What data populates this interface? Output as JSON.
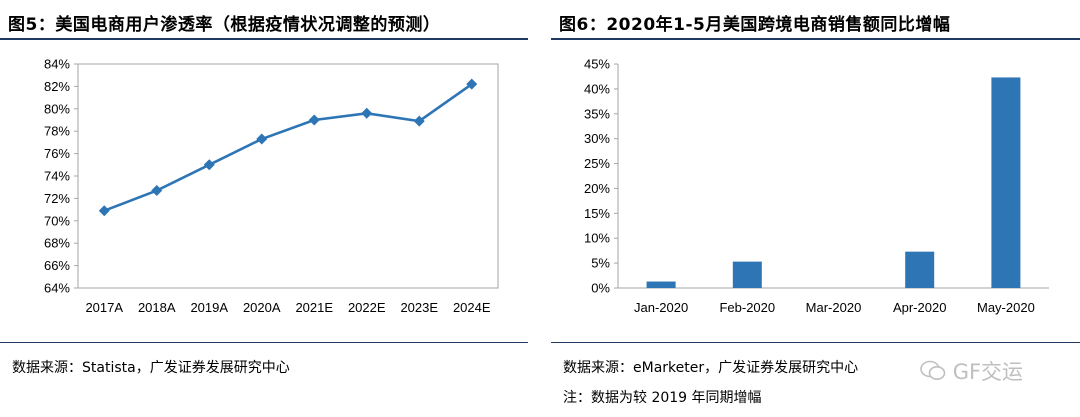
{
  "left": {
    "title": "图5：美国电商用户渗透率（根据疫情状况调整的预测）",
    "source": "数据来源：Statista，广发证券发展研究中心"
  },
  "right": {
    "title": "图6：2020年1-5月美国跨境电商销售额同比增幅",
    "source": "数据来源：eMarketer，广发证券发展研究中心",
    "note": "注：数据为较 2019 年同期增幅"
  },
  "watermark": "GF交运",
  "colors": {
    "series": "#2e75b6",
    "rule": "#1f3864",
    "axis": "#a6a6a6"
  },
  "chart_data": [
    {
      "type": "line",
      "categories": [
        "2017A",
        "2018A",
        "2019A",
        "2020A",
        "2021E",
        "2022E",
        "2023E",
        "2024E"
      ],
      "values": [
        70.9,
        72.7,
        75.0,
        77.3,
        79.0,
        79.6,
        78.9,
        82.2
      ],
      "y_ticks": [
        "64%",
        "66%",
        "68%",
        "70%",
        "72%",
        "74%",
        "76%",
        "78%",
        "80%",
        "82%",
        "84%"
      ],
      "ylim": [
        64,
        84
      ],
      "marker": "diamond",
      "grid": false
    },
    {
      "type": "bar",
      "categories": [
        "Jan-2020",
        "Feb-2020",
        "Mar-2020",
        "Apr-2020",
        "May-2020"
      ],
      "values": [
        1.3,
        5.3,
        0,
        7.3,
        42.3
      ],
      "y_ticks": [
        "0%",
        "5%",
        "10%",
        "15%",
        "20%",
        "25%",
        "30%",
        "35%",
        "40%",
        "45%"
      ],
      "ylim": [
        0,
        45
      ],
      "grid": false
    }
  ]
}
